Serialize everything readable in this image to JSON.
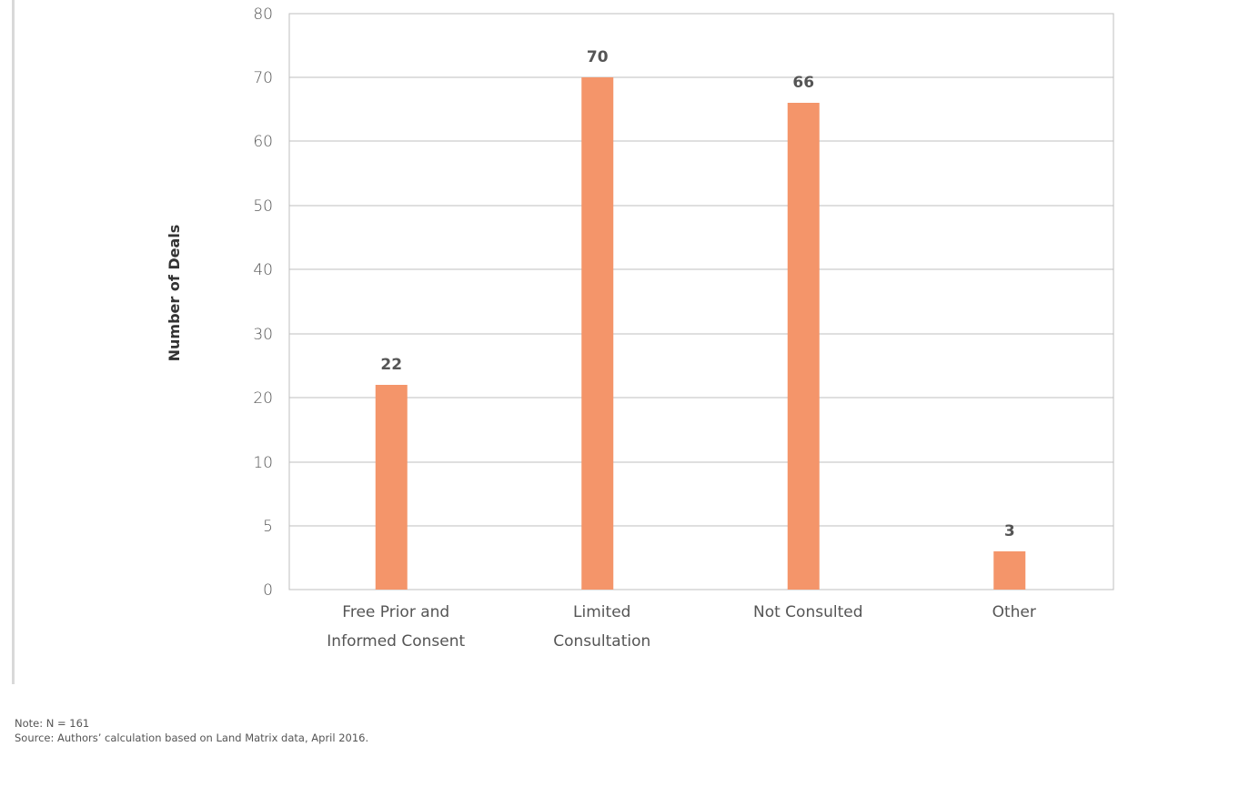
{
  "chart_data": {
    "type": "bar",
    "categories": [
      [
        "Free Prior and",
        "Informed Consent"
      ],
      [
        "Limited",
        "Consultation"
      ],
      [
        "Not Consulted"
      ],
      [
        "Other"
      ]
    ],
    "values": [
      22,
      70,
      66,
      3
    ],
    "ylabel": "Number of Deals",
    "xlabel": "",
    "yticks": [
      0,
      5,
      10,
      20,
      30,
      40,
      50,
      60,
      70,
      80
    ],
    "ylim": [
      0,
      80
    ],
    "grid": true,
    "legend": "none",
    "bar_color": "#f4956a"
  },
  "notes": {
    "note": "Note: N = 161",
    "source": "Source: Authors’ calculation based on Land Matrix data, April 2016."
  }
}
